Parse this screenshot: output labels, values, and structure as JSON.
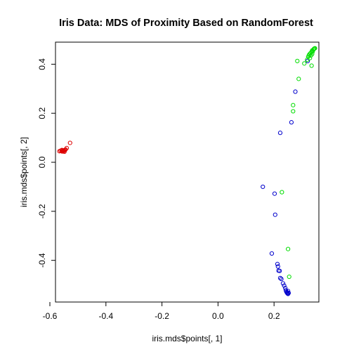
{
  "chart_data": {
    "type": "scatter",
    "title": "Iris Data: MDS of Proximity Based on RandomForest",
    "xlabel": "iris.mds$points[, 1]",
    "ylabel": "iris.mds$points[, 2]",
    "xlim": [
      -0.58,
      0.36
    ],
    "ylim": [
      -0.57,
      0.49
    ],
    "xticks": [
      -0.6,
      -0.4,
      -0.2,
      0.0,
      0.2
    ],
    "xtick_labels": [
      "-0.6",
      "-0.4",
      "-0.2",
      "0.0",
      "0.2"
    ],
    "yticks": [
      -0.4,
      -0.2,
      0.0,
      0.2,
      0.4
    ],
    "ytick_labels": [
      "-0.4",
      "-0.2",
      "0.0",
      "0.2",
      "0.4"
    ],
    "grid": false,
    "series": [
      {
        "color": "#dd0000",
        "points": [
          [
            -0.566,
            0.045
          ],
          [
            -0.562,
            0.047
          ],
          [
            -0.558,
            0.048
          ],
          [
            -0.556,
            0.044
          ],
          [
            -0.553,
            0.046
          ],
          [
            -0.55,
            0.049
          ],
          [
            -0.548,
            0.043
          ],
          [
            -0.546,
            0.05
          ],
          [
            -0.552,
            0.045
          ],
          [
            -0.544,
            0.052
          ],
          [
            -0.54,
            0.058
          ],
          [
            -0.528,
            0.079
          ],
          [
            -0.557,
            0.05
          ],
          [
            -0.549,
            0.047
          ]
        ]
      },
      {
        "color": "#0000cc",
        "points": [
          [
            0.16,
            -0.1
          ],
          [
            0.202,
            -0.128
          ],
          [
            0.204,
            -0.214
          ],
          [
            0.222,
            0.12
          ],
          [
            0.262,
            0.163
          ],
          [
            0.276,
            0.288
          ],
          [
            0.32,
            0.413
          ],
          [
            0.192,
            -0.372
          ],
          [
            0.212,
            -0.415
          ],
          [
            0.214,
            -0.425
          ],
          [
            0.216,
            -0.442
          ],
          [
            0.22,
            -0.443
          ],
          [
            0.222,
            -0.472
          ],
          [
            0.226,
            -0.476
          ],
          [
            0.232,
            -0.494
          ],
          [
            0.236,
            -0.503
          ],
          [
            0.24,
            -0.513
          ],
          [
            0.242,
            -0.522
          ],
          [
            0.244,
            -0.528
          ],
          [
            0.246,
            -0.532
          ],
          [
            0.248,
            -0.535
          ],
          [
            0.25,
            -0.537
          ],
          [
            0.252,
            -0.533
          ],
          [
            0.25,
            -0.525
          ],
          [
            0.247,
            -0.53
          ]
        ]
      },
      {
        "color": "#00dd00",
        "points": [
          [
            0.228,
            -0.122
          ],
          [
            0.25,
            -0.354
          ],
          [
            0.254,
            -0.467
          ],
          [
            0.268,
            0.208
          ],
          [
            0.268,
            0.233
          ],
          [
            0.283,
            0.413
          ],
          [
            0.288,
            0.34
          ],
          [
            0.308,
            0.403
          ],
          [
            0.318,
            0.418
          ],
          [
            0.322,
            0.43
          ],
          [
            0.326,
            0.44
          ],
          [
            0.33,
            0.445
          ],
          [
            0.334,
            0.45
          ],
          [
            0.336,
            0.456
          ],
          [
            0.34,
            0.459
          ],
          [
            0.342,
            0.462
          ],
          [
            0.344,
            0.464
          ],
          [
            0.346,
            0.465
          ],
          [
            0.328,
            0.425
          ],
          [
            0.336,
            0.442
          ],
          [
            0.324,
            0.435
          ],
          [
            0.338,
            0.452
          ],
          [
            0.332,
            0.436
          ],
          [
            0.334,
            0.394
          ]
        ]
      }
    ]
  }
}
